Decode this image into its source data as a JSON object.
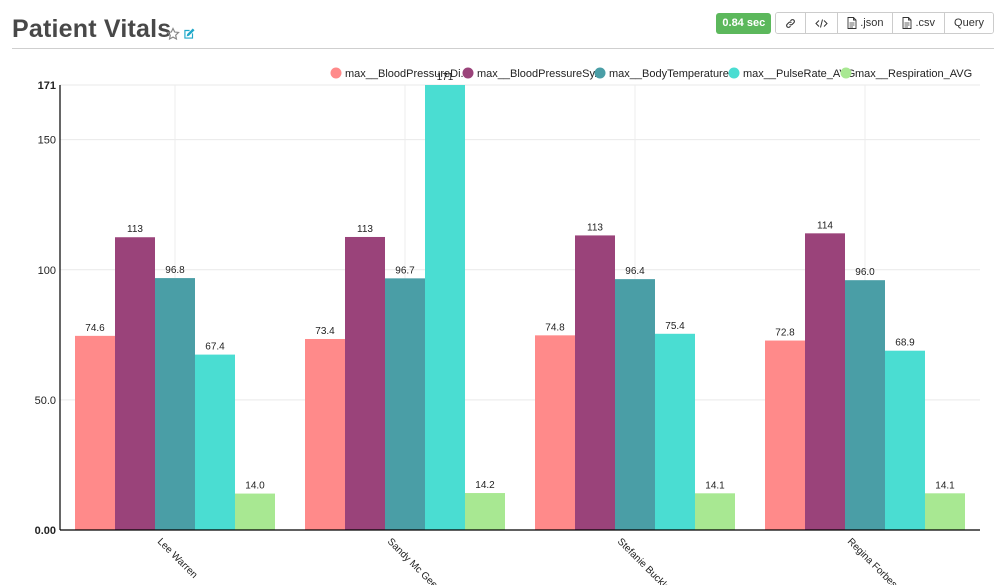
{
  "header": {
    "title": "Patient Vitals",
    "timer": "0.84 sec",
    "buttons": [
      {
        "icon": "link-icon",
        "label": ""
      },
      {
        "icon": "code-icon",
        "label": ""
      },
      {
        "icon": "file-icon",
        "label": ".json"
      },
      {
        "icon": "file-icon",
        "label": ".csv"
      },
      {
        "icon": "",
        "label": "Query"
      }
    ]
  },
  "colors": {
    "timer_bg": "#5cb85c",
    "series": [
      "#ff8a8a",
      "#9a437a",
      "#4a9ea6",
      "#4addd2",
      "#a8e892"
    ]
  },
  "chart_data": {
    "type": "bar",
    "categories": [
      "Lee Warren",
      "Sandy Mc Gee",
      "Stefanie Buckley",
      "Regina Forbes"
    ],
    "series": [
      {
        "name": "max__BloodPressureDiastolic_AVG",
        "legend": "max__BloodPressureDi...",
        "values": [
          74.6,
          73.4,
          74.8,
          72.8
        ]
      },
      {
        "name": "max__BloodPressureSystolic_AVG",
        "legend": "max__BloodPressureSy...",
        "values": [
          112.5,
          112.6,
          113.2,
          114.0
        ]
      },
      {
        "name": "max__BodyTemperature_AVG",
        "legend": "max__BodyTemperature...",
        "values": [
          96.8,
          96.7,
          96.4,
          96.0
        ]
      },
      {
        "name": "max__PulseRate_AVG",
        "legend": "max__PulseRate_AVG",
        "values": [
          67.4,
          171.0,
          75.4,
          68.9
        ]
      },
      {
        "name": "max__Respiration_AVG",
        "legend": "max__Respiration_AVG",
        "values": [
          14.0,
          14.2,
          14.1,
          14.1
        ]
      }
    ],
    "data_labels": [
      [
        "74.6",
        "73.4",
        "74.8",
        "72.8"
      ],
      [
        "113",
        "113",
        "113",
        "114"
      ],
      [
        "96.8",
        "96.7",
        "96.4",
        "96.0"
      ],
      [
        "67.4",
        "171",
        "75.4",
        "68.9"
      ],
      [
        "14.0",
        "14.2",
        "14.1",
        "14.1"
      ]
    ],
    "y_ticks": [
      0,
      50,
      100,
      150,
      171
    ],
    "y_tick_labels": [
      "0.00",
      "50.0",
      "100",
      "150",
      "171"
    ],
    "ylim": [
      0,
      171
    ],
    "grid": true,
    "legend_position": "top-right",
    "title": "",
    "xlabel": "",
    "ylabel": ""
  }
}
